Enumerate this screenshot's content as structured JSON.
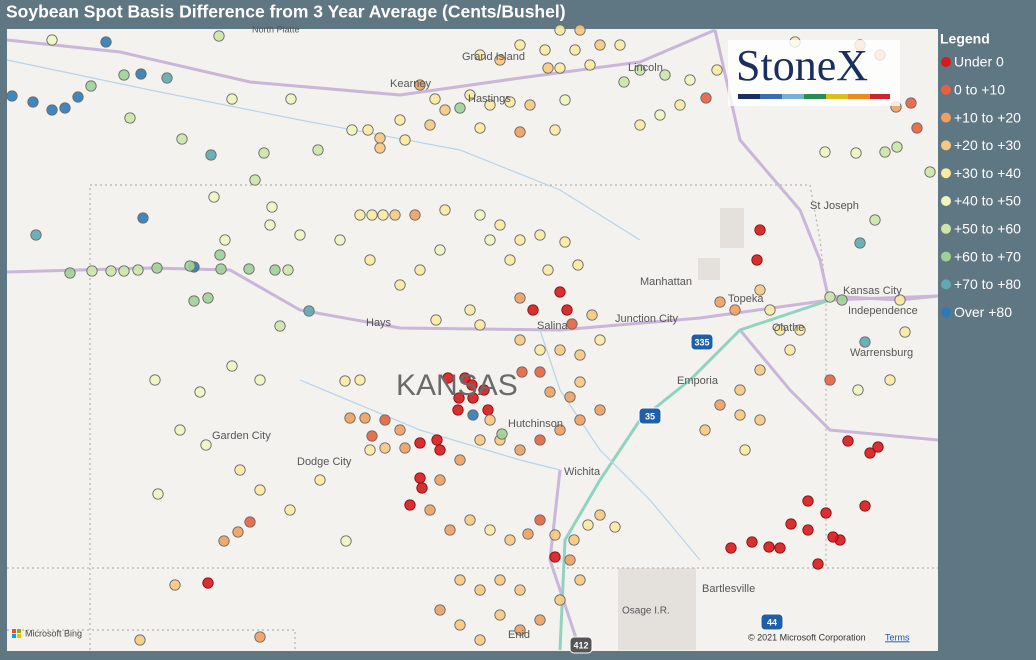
{
  "title": "Soybean Spot Basis Difference from 3 Year Average (Cents/Bushel)",
  "legend": {
    "title": "Legend",
    "items": [
      {
        "label": "Under 0",
        "color": "#d7191c"
      },
      {
        "label": "0 to +10",
        "color": "#e8603c"
      },
      {
        "label": "+10 to +20",
        "color": "#f0a061"
      },
      {
        "label": "+20 to +30",
        "color": "#f8c880"
      },
      {
        "label": "+30 to +40",
        "color": "#fbeaa0"
      },
      {
        "label": "+40 to +50",
        "color": "#eef5bf"
      },
      {
        "label": "+50 to +60",
        "color": "#cde5a8"
      },
      {
        "label": "+60 to +70",
        "color": "#9fd197"
      },
      {
        "label": "+70 to +80",
        "color": "#5fa9b0"
      },
      {
        "label": "Over +80",
        "color": "#2c7bb6"
      }
    ]
  },
  "map_labels": [
    "North Platte",
    "Grand Island",
    "Kearney",
    "Hastings",
    "Lincoln",
    "St Joseph",
    "Manhattan",
    "Topeka",
    "Kansas City",
    "Independence",
    "Olathe",
    "Junction City",
    "Salina",
    "Hays",
    "KANSAS",
    "Emporia",
    "Warrensburg",
    "Hutchinson",
    "Garden City",
    "Dodge City",
    "Wichita",
    "Bartlesville",
    "Osage I.R.",
    "Enid"
  ],
  "road_shields": [
    "335",
    "35",
    "44",
    "412"
  ],
  "logo": "StoneX",
  "attribution": {
    "brand": "Microsoft Bing",
    "copyright": "© 2021 Microsoft Corporation",
    "terms": "Terms"
  }
}
